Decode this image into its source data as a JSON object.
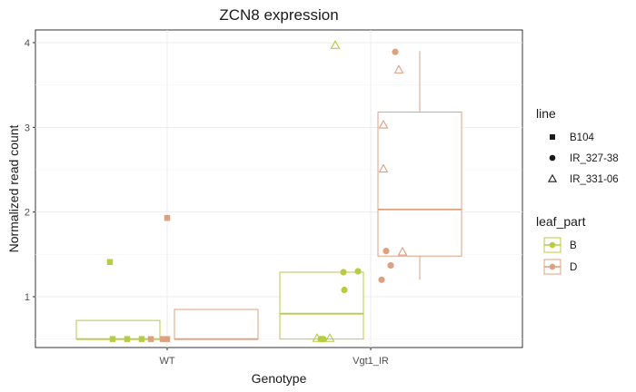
{
  "chart_data": {
    "type": "box",
    "title": "ZCN8 expression",
    "xlabel": "Genotype",
    "ylabel": "Normalized read count",
    "categories": [
      "WT",
      "Vgt1_IR"
    ],
    "y_ticks": [
      1,
      2,
      3,
      4
    ],
    "ylim": [
      0.4,
      4.15
    ],
    "grid": true,
    "legend_placement": "right",
    "colors": {
      "B": "#b5cc45",
      "D": "#dfa080"
    },
    "series": [
      {
        "name": "B",
        "boxes": [
          {
            "category": "WT",
            "min": 0.5,
            "q1": 0.5,
            "median": 0.5,
            "q3": 0.72,
            "max": 0.72,
            "points": [
              {
                "y": 1.41,
                "shape": "square"
              },
              {
                "y": 0.5,
                "shape": "square"
              },
              {
                "y": 0.5,
                "shape": "square"
              },
              {
                "y": 0.5,
                "shape": "square"
              }
            ]
          },
          {
            "category": "Vgt1_IR",
            "min": 0.5,
            "q1": 0.5,
            "median": 0.8,
            "q3": 1.29,
            "max": 1.29,
            "points": [
              {
                "y": 3.97,
                "shape": "triangle"
              },
              {
                "y": 1.29,
                "shape": "circle"
              },
              {
                "y": 1.3,
                "shape": "circle"
              },
              {
                "y": 1.08,
                "shape": "circle"
              },
              {
                "y": 0.51,
                "shape": "triangle"
              },
              {
                "y": 0.5,
                "shape": "circle"
              },
              {
                "y": 0.51,
                "shape": "triangle"
              },
              {
                "y": 0.5,
                "shape": "circle"
              }
            ]
          }
        ]
      },
      {
        "name": "D",
        "boxes": [
          {
            "category": "WT",
            "min": 0.5,
            "q1": 0.5,
            "median": 0.5,
            "q3": 0.85,
            "max": 0.85,
            "points": [
              {
                "y": 1.93,
                "shape": "square"
              },
              {
                "y": 0.5,
                "shape": "square"
              },
              {
                "y": 0.5,
                "shape": "square"
              },
              {
                "y": 0.5,
                "shape": "square"
              }
            ]
          },
          {
            "category": "Vgt1_IR",
            "min": 1.2,
            "q1": 1.48,
            "median": 2.03,
            "q3": 3.18,
            "max": 3.9,
            "points": [
              {
                "y": 3.89,
                "shape": "circle"
              },
              {
                "y": 3.68,
                "shape": "triangle"
              },
              {
                "y": 3.03,
                "shape": "triangle"
              },
              {
                "y": 2.51,
                "shape": "triangle"
              },
              {
                "y": 1.54,
                "shape": "circle"
              },
              {
                "y": 1.53,
                "shape": "triangle"
              },
              {
                "y": 1.37,
                "shape": "circle"
              },
              {
                "y": 1.2,
                "shape": "circle"
              }
            ]
          }
        ]
      }
    ],
    "legend": {
      "line": {
        "title": "line",
        "entries": [
          {
            "label": "B104",
            "shape": "square"
          },
          {
            "label": "IR_327-38",
            "shape": "circle"
          },
          {
            "label": "IR_331-06",
            "shape": "triangle"
          }
        ]
      },
      "leaf_part": {
        "title": "leaf_part",
        "entries": [
          {
            "label": "B",
            "color_key": "B"
          },
          {
            "label": "D",
            "color_key": "D"
          }
        ]
      }
    }
  }
}
